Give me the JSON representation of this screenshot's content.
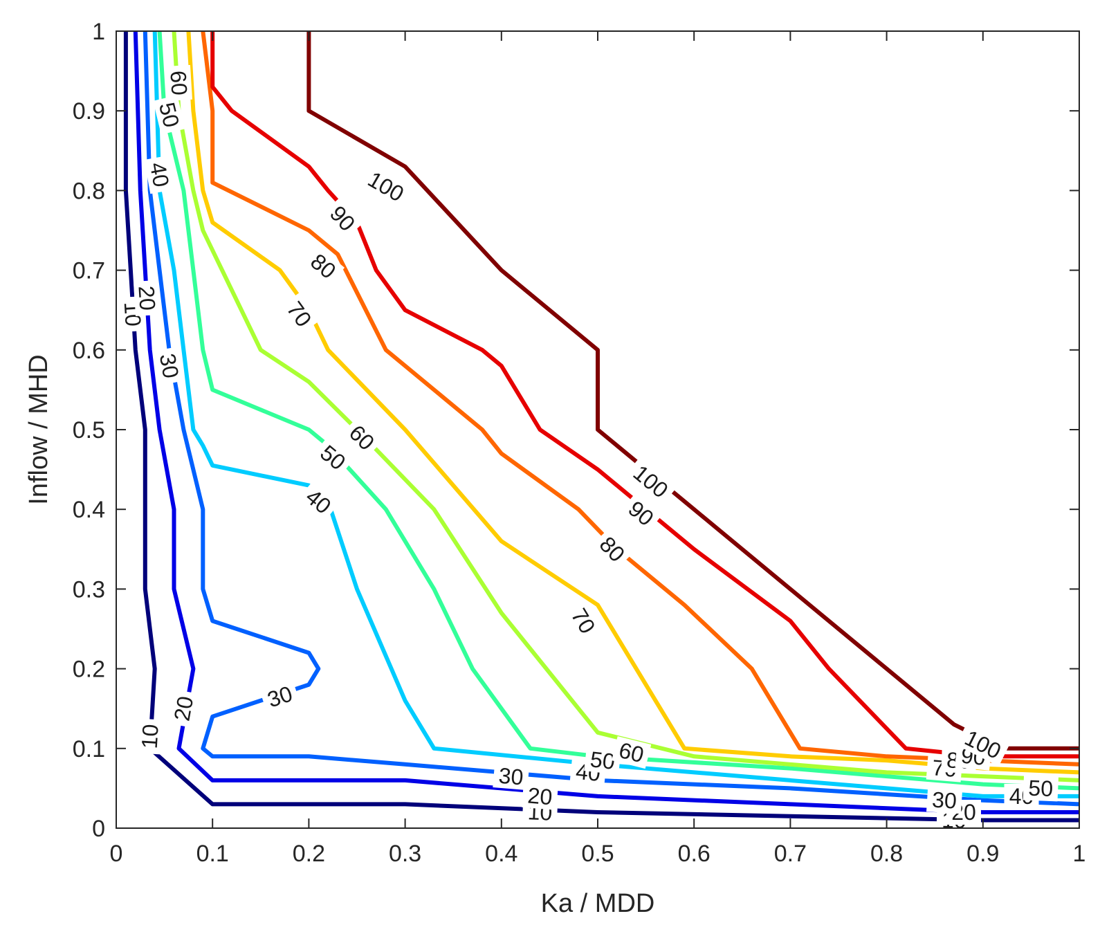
{
  "chart_data": {
    "type": "contour",
    "xlabel": "Ka / MDD",
    "ylabel": "Inflow / MHD",
    "xlim": [
      0,
      1
    ],
    "ylim": [
      0,
      1
    ],
    "xticks": [
      "0",
      "0.1",
      "0.2",
      "0.3",
      "0.4",
      "0.5",
      "0.6",
      "0.7",
      "0.8",
      "0.9",
      "1"
    ],
    "yticks": [
      "0",
      "0.1",
      "0.2",
      "0.3",
      "0.4",
      "0.5",
      "0.6",
      "0.7",
      "0.8",
      "0.9",
      "1"
    ],
    "grid": false,
    "levels": [
      {
        "level": 10,
        "label": "10",
        "color": "#00007a",
        "points": [
          [
            0.01,
            1
          ],
          [
            0.01,
            0.8
          ],
          [
            0.015,
            0.7
          ],
          [
            0.02,
            0.6
          ],
          [
            0.03,
            0.5
          ],
          [
            0.03,
            0.4
          ],
          [
            0.03,
            0.3
          ],
          [
            0.04,
            0.2
          ],
          [
            0.035,
            0.1
          ],
          [
            0.1,
            0.03
          ],
          [
            0.3,
            0.03
          ],
          [
            0.5,
            0.02
          ],
          [
            0.7,
            0.015
          ],
          [
            0.9,
            0.01
          ],
          [
            1,
            0.01
          ]
        ],
        "labels": [
          [
            0.017,
            0.645
          ],
          [
            0.035,
            0.115
          ],
          [
            0.44,
            0.02
          ],
          [
            0.87,
            0.01
          ]
        ]
      },
      {
        "level": 20,
        "label": "20",
        "color": "#0000e6",
        "points": [
          [
            0.02,
            1
          ],
          [
            0.025,
            0.8
          ],
          [
            0.03,
            0.7
          ],
          [
            0.035,
            0.6
          ],
          [
            0.045,
            0.5
          ],
          [
            0.06,
            0.4
          ],
          [
            0.06,
            0.3
          ],
          [
            0.08,
            0.2
          ],
          [
            0.065,
            0.1
          ],
          [
            0.1,
            0.06
          ],
          [
            0.3,
            0.06
          ],
          [
            0.5,
            0.04
          ],
          [
            0.7,
            0.03
          ],
          [
            0.9,
            0.02
          ],
          [
            1,
            0.02
          ]
        ],
        "labels": [
          [
            0.032,
            0.665
          ],
          [
            0.07,
            0.15
          ],
          [
            0.44,
            0.04
          ],
          [
            0.88,
            0.02
          ]
        ]
      },
      {
        "level": 30,
        "label": "30",
        "color": "#0060ff",
        "points": [
          [
            0.03,
            1
          ],
          [
            0.035,
            0.8
          ],
          [
            0.045,
            0.7
          ],
          [
            0.055,
            0.6
          ],
          [
            0.07,
            0.5
          ],
          [
            0.09,
            0.4
          ],
          [
            0.09,
            0.3
          ],
          [
            0.1,
            0.26
          ],
          [
            0.2,
            0.22
          ],
          [
            0.21,
            0.2
          ],
          [
            0.2,
            0.18
          ],
          [
            0.1,
            0.14
          ],
          [
            0.09,
            0.1
          ],
          [
            0.1,
            0.09
          ],
          [
            0.2,
            0.09
          ],
          [
            0.3,
            0.08
          ],
          [
            0.5,
            0.06
          ],
          [
            0.7,
            0.05
          ],
          [
            0.9,
            0.035
          ],
          [
            1,
            0.03
          ]
        ],
        "labels": [
          [
            0.055,
            0.58
          ],
          [
            0.17,
            0.165
          ],
          [
            0.41,
            0.065
          ],
          [
            0.86,
            0.035
          ]
        ]
      },
      {
        "level": 40,
        "label": "40",
        "color": "#00ccff",
        "points": [
          [
            0.04,
            1
          ],
          [
            0.045,
            0.8
          ],
          [
            0.06,
            0.7
          ],
          [
            0.07,
            0.6
          ],
          [
            0.08,
            0.5
          ],
          [
            0.09,
            0.48
          ],
          [
            0.1,
            0.455
          ],
          [
            0.2,
            0.43
          ],
          [
            0.22,
            0.41
          ],
          [
            0.25,
            0.3
          ],
          [
            0.3,
            0.16
          ],
          [
            0.33,
            0.1
          ],
          [
            0.5,
            0.08
          ],
          [
            0.7,
            0.06
          ],
          [
            0.9,
            0.04
          ],
          [
            1,
            0.04
          ]
        ],
        "labels": [
          [
            0.045,
            0.82
          ],
          [
            0.21,
            0.41
          ],
          [
            0.49,
            0.07
          ],
          [
            0.94,
            0.04
          ]
        ]
      },
      {
        "level": 50,
        "label": "50",
        "color": "#33ff99",
        "points": [
          [
            0.045,
            1
          ],
          [
            0.05,
            0.9
          ],
          [
            0.07,
            0.8
          ],
          [
            0.08,
            0.7
          ],
          [
            0.09,
            0.6
          ],
          [
            0.1,
            0.55
          ],
          [
            0.2,
            0.5
          ],
          [
            0.22,
            0.48
          ],
          [
            0.28,
            0.4
          ],
          [
            0.33,
            0.3
          ],
          [
            0.37,
            0.2
          ],
          [
            0.43,
            0.1
          ],
          [
            0.5,
            0.09
          ],
          [
            0.7,
            0.075
          ],
          [
            0.9,
            0.055
          ],
          [
            1,
            0.05
          ]
        ],
        "labels": [
          [
            0.055,
            0.895
          ],
          [
            0.225,
            0.465
          ],
          [
            0.505,
            0.085
          ],
          [
            0.96,
            0.05
          ]
        ]
      },
      {
        "level": 60,
        "label": "60",
        "color": "#aaff33",
        "points": [
          [
            0.06,
            1
          ],
          [
            0.065,
            0.9
          ],
          [
            0.08,
            0.8
          ],
          [
            0.09,
            0.75
          ],
          [
            0.11,
            0.7
          ],
          [
            0.15,
            0.6
          ],
          [
            0.2,
            0.56
          ],
          [
            0.25,
            0.5
          ],
          [
            0.33,
            0.4
          ],
          [
            0.4,
            0.27
          ],
          [
            0.5,
            0.12
          ],
          [
            0.6,
            0.09
          ],
          [
            0.8,
            0.07
          ],
          [
            0.9,
            0.065
          ],
          [
            1,
            0.06
          ]
        ],
        "labels": [
          [
            0.065,
            0.935
          ],
          [
            0.255,
            0.49
          ],
          [
            0.535,
            0.095
          ]
        ]
      },
      {
        "level": 70,
        "label": "70",
        "color": "#ffcc00",
        "points": [
          [
            0.075,
            1
          ],
          [
            0.08,
            0.9
          ],
          [
            0.09,
            0.8
          ],
          [
            0.1,
            0.76
          ],
          [
            0.17,
            0.7
          ],
          [
            0.2,
            0.65
          ],
          [
            0.22,
            0.6
          ],
          [
            0.3,
            0.5
          ],
          [
            0.4,
            0.36
          ],
          [
            0.5,
            0.28
          ],
          [
            0.54,
            0.2
          ],
          [
            0.59,
            0.1
          ],
          [
            0.7,
            0.09
          ],
          [
            0.8,
            0.085
          ],
          [
            0.9,
            0.075
          ],
          [
            1,
            0.07
          ]
        ],
        "labels": [
          [
            0.19,
            0.645
          ],
          [
            0.485,
            0.26
          ],
          [
            0.86,
            0.075
          ]
        ]
      },
      {
        "level": 80,
        "label": "80",
        "color": "#ff6600",
        "points": [
          [
            0.09,
            1
          ],
          [
            0.1,
            0.9
          ],
          [
            0.1,
            0.81
          ],
          [
            0.2,
            0.75
          ],
          [
            0.23,
            0.72
          ],
          [
            0.28,
            0.6
          ],
          [
            0.38,
            0.5
          ],
          [
            0.4,
            0.47
          ],
          [
            0.48,
            0.4
          ],
          [
            0.52,
            0.35
          ],
          [
            0.59,
            0.28
          ],
          [
            0.66,
            0.2
          ],
          [
            0.71,
            0.1
          ],
          [
            0.8,
            0.09
          ],
          [
            0.9,
            0.085
          ],
          [
            1,
            0.08
          ]
        ],
        "labels": [
          [
            0.215,
            0.705
          ],
          [
            0.515,
            0.35
          ],
          [
            0.875,
            0.085
          ]
        ]
      },
      {
        "level": 90,
        "label": "90",
        "color": "#e60000",
        "points": [
          [
            0.1,
            1
          ],
          [
            0.1,
            0.93
          ],
          [
            0.12,
            0.9
          ],
          [
            0.2,
            0.83
          ],
          [
            0.22,
            0.8
          ],
          [
            0.25,
            0.76
          ],
          [
            0.27,
            0.7
          ],
          [
            0.3,
            0.65
          ],
          [
            0.38,
            0.6
          ],
          [
            0.4,
            0.58
          ],
          [
            0.44,
            0.5
          ],
          [
            0.5,
            0.45
          ],
          [
            0.6,
            0.35
          ],
          [
            0.7,
            0.26
          ],
          [
            0.74,
            0.2
          ],
          [
            0.82,
            0.1
          ],
          [
            0.9,
            0.09
          ],
          [
            1,
            0.09
          ]
        ],
        "labels": [
          [
            0.235,
            0.765
          ],
          [
            0.545,
            0.395
          ],
          [
            0.89,
            0.09
          ]
        ]
      },
      {
        "level": 100,
        "label": "100",
        "color": "#800000",
        "points": [
          [
            0.2,
            1
          ],
          [
            0.2,
            0.9
          ],
          [
            0.3,
            0.83
          ],
          [
            0.4,
            0.7
          ],
          [
            0.5,
            0.6
          ],
          [
            0.5,
            0.5
          ],
          [
            0.6,
            0.4
          ],
          [
            0.7,
            0.3
          ],
          [
            0.8,
            0.2
          ],
          [
            0.87,
            0.13
          ],
          [
            0.92,
            0.1
          ],
          [
            1,
            0.1
          ]
        ],
        "labels": [
          [
            0.28,
            0.805
          ],
          [
            0.555,
            0.435
          ],
          [
            0.9,
            0.105
          ]
        ]
      }
    ]
  }
}
